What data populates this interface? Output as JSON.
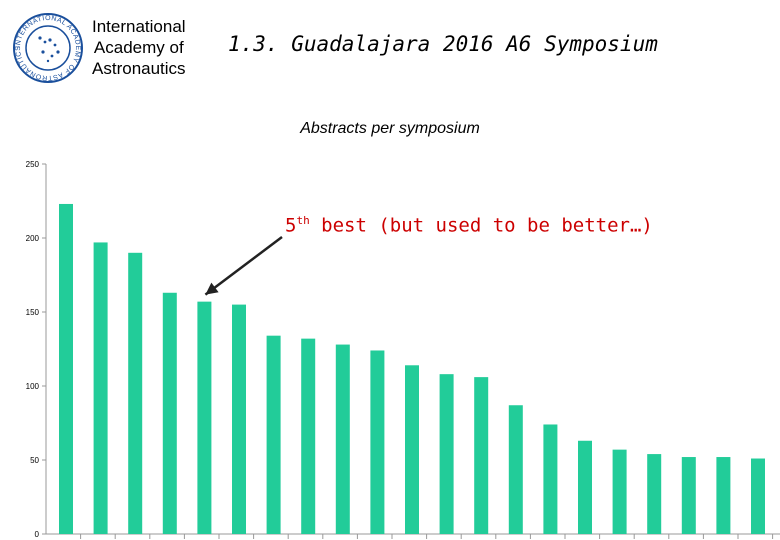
{
  "header": {
    "org_line1": "International",
    "org_line2": "Academy of",
    "org_line3": "Astronautics",
    "slide_title": "1.3. Guadalajara 2016 A6 Symposium"
  },
  "logo": {
    "icon": "iaa-seal-icon",
    "ring_text": "INTERNATIONAL ACADEMY OF ASTRONAUTICS · IAA ·"
  },
  "annotation": {
    "rank_number": "5",
    "rank_suffix": "th",
    "text": " best (but used to be better…)",
    "color": "#cc0000"
  },
  "chart_data": {
    "type": "bar",
    "title": "Abstracts per symposium",
    "xlabel": "",
    "ylabel": "",
    "ylim": [
      0,
      250
    ],
    "yticks": [
      0,
      50,
      100,
      150,
      200,
      250
    ],
    "grid": false,
    "legend": "none",
    "bar_color": "#22cc99",
    "values": [
      223,
      197,
      190,
      163,
      157,
      155,
      134,
      132,
      128,
      124,
      114,
      108,
      106,
      87,
      74,
      63,
      57,
      54,
      52,
      52,
      51
    ],
    "highlight_index": 4
  }
}
